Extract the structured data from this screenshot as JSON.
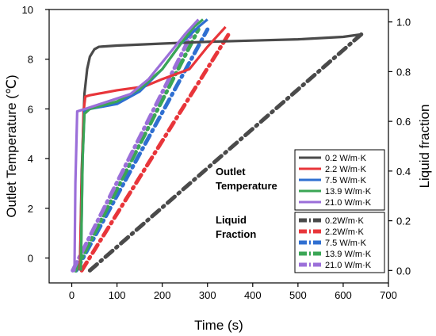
{
  "chart_data": {
    "type": "line",
    "xlabel": "Time (s)",
    "ylabel_left": "Outlet Temperature (℃)",
    "ylabel_right": "Liquid fraction",
    "xlim": [
      -50,
      700
    ],
    "ylim_left": [
      -1,
      10
    ],
    "ylim_right": [
      -0.05,
      1.05
    ],
    "x_ticks": [
      0,
      100,
      200,
      300,
      400,
      500,
      600,
      700
    ],
    "y_left_ticks": [
      0,
      2,
      4,
      6,
      8,
      10
    ],
    "y_right_ticks": [
      0.0,
      0.2,
      0.4,
      0.6,
      0.8,
      1.0
    ],
    "x_tick_labels": [
      "0",
      "100",
      "200",
      "300",
      "400",
      "500",
      "600",
      "700"
    ],
    "y_left_tick_labels": [
      "0",
      "2",
      "4",
      "6",
      "8",
      "10"
    ],
    "y_right_tick_labels": [
      "0.0",
      "0.2",
      "0.4",
      "0.6",
      "0.8",
      "1.0"
    ],
    "grid": false,
    "legend_position": "bottom-right",
    "annotations": {
      "temperature_group": [
        "Outlet",
        "Temperature"
      ],
      "liquid_group": [
        "Liquid",
        "Fraction"
      ]
    },
    "temperature_series": [
      {
        "name": "0.2 W/m·K",
        "color": "#4a4a4a",
        "axis": "left",
        "style": "solid",
        "x": [
          18,
          22,
          28,
          34,
          40,
          50,
          60,
          100,
          200,
          300,
          400,
          500,
          600,
          640
        ],
        "y": [
          -0.5,
          3.5,
          6.6,
          7.6,
          8.1,
          8.4,
          8.5,
          8.55,
          8.63,
          8.7,
          8.75,
          8.8,
          8.9,
          9.0
        ]
      },
      {
        "name": "2.2 W/m·K",
        "color": "#e8353a",
        "axis": "left",
        "style": "solid",
        "x": [
          18,
          22,
          26,
          30,
          40,
          100,
          160,
          200,
          260,
          300,
          340
        ],
        "y": [
          -0.5,
          3.0,
          5.9,
          6.5,
          6.55,
          6.75,
          6.9,
          7.2,
          7.6,
          8.5,
          9.3
        ]
      },
      {
        "name": "7.5 W/m·K",
        "color": "#2f6fd1",
        "axis": "left",
        "style": "solid",
        "x": [
          20,
          24,
          28,
          40,
          100,
          150,
          200,
          240,
          280,
          300
        ],
        "y": [
          -0.5,
          4.0,
          5.9,
          6.0,
          6.2,
          6.7,
          7.6,
          8.6,
          9.3,
          9.6
        ]
      },
      {
        "name": "13.9 W/m·K",
        "color": "#3aa655",
        "axis": "left",
        "style": "solid",
        "x": [
          20,
          24,
          28,
          40,
          100,
          150,
          200,
          240,
          270,
          290
        ],
        "y": [
          -0.5,
          4.0,
          5.8,
          6.0,
          6.3,
          6.8,
          7.6,
          8.6,
          9.3,
          9.6
        ]
      },
      {
        "name": "21.0 W/m·K",
        "color": "#9b6fd9",
        "axis": "left",
        "style": "solid",
        "x": [
          2,
          6,
          8,
          12,
          30,
          80,
          130,
          170,
          210,
          250,
          280
        ],
        "y": [
          -0.5,
          -0.5,
          3.0,
          5.9,
          6.0,
          6.3,
          6.6,
          7.2,
          8.1,
          9.0,
          9.6
        ]
      }
    ],
    "liquid_series": [
      {
        "name": "0.2W/m·K",
        "color": "#4a4a4a",
        "axis": "right",
        "style": "dashdot",
        "x": [
          40,
          640
        ],
        "y": [
          0.0,
          0.95
        ]
      },
      {
        "name": "2.2W/m·K",
        "color": "#e8353a",
        "axis": "right",
        "style": "dashdot",
        "x": [
          22,
          350
        ],
        "y": [
          0.0,
          0.96
        ]
      },
      {
        "name": "7.5 W/m·K",
        "color": "#2f6fd1",
        "axis": "right",
        "style": "dashdot",
        "x": [
          10,
          300
        ],
        "y": [
          0.0,
          0.97
        ]
      },
      {
        "name": "13.9 W/m·K",
        "color": "#3aa655",
        "axis": "right",
        "style": "dashdot",
        "x": [
          8,
          280
        ],
        "y": [
          0.0,
          0.97
        ]
      },
      {
        "name": "21.0 W/m·K",
        "color": "#9b6fd9",
        "axis": "right",
        "style": "dashdot",
        "x": [
          2,
          270
        ],
        "y": [
          0.0,
          0.97
        ]
      }
    ]
  }
}
